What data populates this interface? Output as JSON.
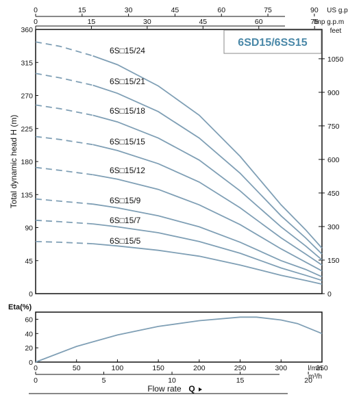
{
  "chart_data": [
    {
      "type": "line",
      "title": "6SD15/6SS15",
      "ylabel": "Total dynamic head H (m)",
      "ylim": [
        0,
        360
      ],
      "y_ticks": [
        "0",
        "45",
        "90",
        "135",
        "180",
        "225",
        "270",
        "315",
        "360"
      ],
      "y2_unit": "feet",
      "y2_ticks": [
        "0",
        "150",
        "300",
        "450",
        "600",
        "750",
        "900",
        "1050"
      ],
      "x_top1_unit": "US g.p.m",
      "x_top1_ticks": [
        "0",
        "15",
        "30",
        "45",
        "60",
        "75",
        "90"
      ],
      "x_top2_unit": "Imp g.p.m",
      "x_top2_ticks": [
        "0",
        "15",
        "30",
        "45",
        "60",
        "75"
      ],
      "xlim": [
        0,
        350
      ],
      "x_unit": "l/min",
      "dashed_until_x": 70,
      "x": [
        0,
        30,
        70,
        100,
        150,
        200,
        250,
        300,
        330,
        350
      ],
      "series": [
        {
          "name": "6S□15/24",
          "values": [
            343,
            337,
            324,
            312,
            283,
            243,
            187,
            121,
            87,
            62
          ]
        },
        {
          "name": "6S□15/21",
          "values": [
            300,
            294,
            284,
            273,
            248,
            212,
            164,
            106,
            76,
            54
          ]
        },
        {
          "name": "6S□15/18",
          "values": [
            257,
            252,
            243,
            234,
            212,
            182,
            140,
            91,
            65,
            46
          ]
        },
        {
          "name": "6S□15/15",
          "values": [
            214,
            210,
            203,
            195,
            177,
            152,
            117,
            76,
            54,
            39
          ]
        },
        {
          "name": "6S□15/12",
          "values": [
            172,
            168,
            162,
            156,
            142,
            121,
            94,
            61,
            43,
            31
          ]
        },
        {
          "name": "6S□15/9",
          "values": [
            129,
            126,
            122,
            117,
            106,
            91,
            70,
            45,
            33,
            23
          ]
        },
        {
          "name": "6S□15/7",
          "values": [
            100,
            98,
            95,
            91,
            83,
            71,
            55,
            35,
            25,
            18
          ]
        },
        {
          "name": "6S□15/5",
          "values": [
            71,
            70,
            68,
            65,
            59,
            51,
            39,
            25,
            18,
            13
          ]
        }
      ]
    },
    {
      "type": "line",
      "ylabel": "Eta(%)",
      "ylim": [
        0,
        70
      ],
      "y_ticks": [
        "0",
        "20",
        "40",
        "60"
      ],
      "x_ticks": [
        "0",
        "50",
        "100",
        "150",
        "200",
        "250",
        "300",
        "350"
      ],
      "x_unit": "l/min",
      "x2_ticks": [
        "0",
        "5",
        "10",
        "15",
        "20"
      ],
      "x2_unit": "m³/h",
      "xlabel": "Flow rate",
      "xlabel_symbol": "Q",
      "x": [
        0,
        50,
        100,
        150,
        200,
        250,
        270,
        300,
        320,
        350
      ],
      "values": [
        0,
        22,
        38,
        50,
        58,
        63,
        63,
        59,
        54,
        40
      ]
    }
  ],
  "colors": {
    "curve": "#7f9fb5",
    "title": "#4a88a8",
    "axis": "#111111"
  }
}
